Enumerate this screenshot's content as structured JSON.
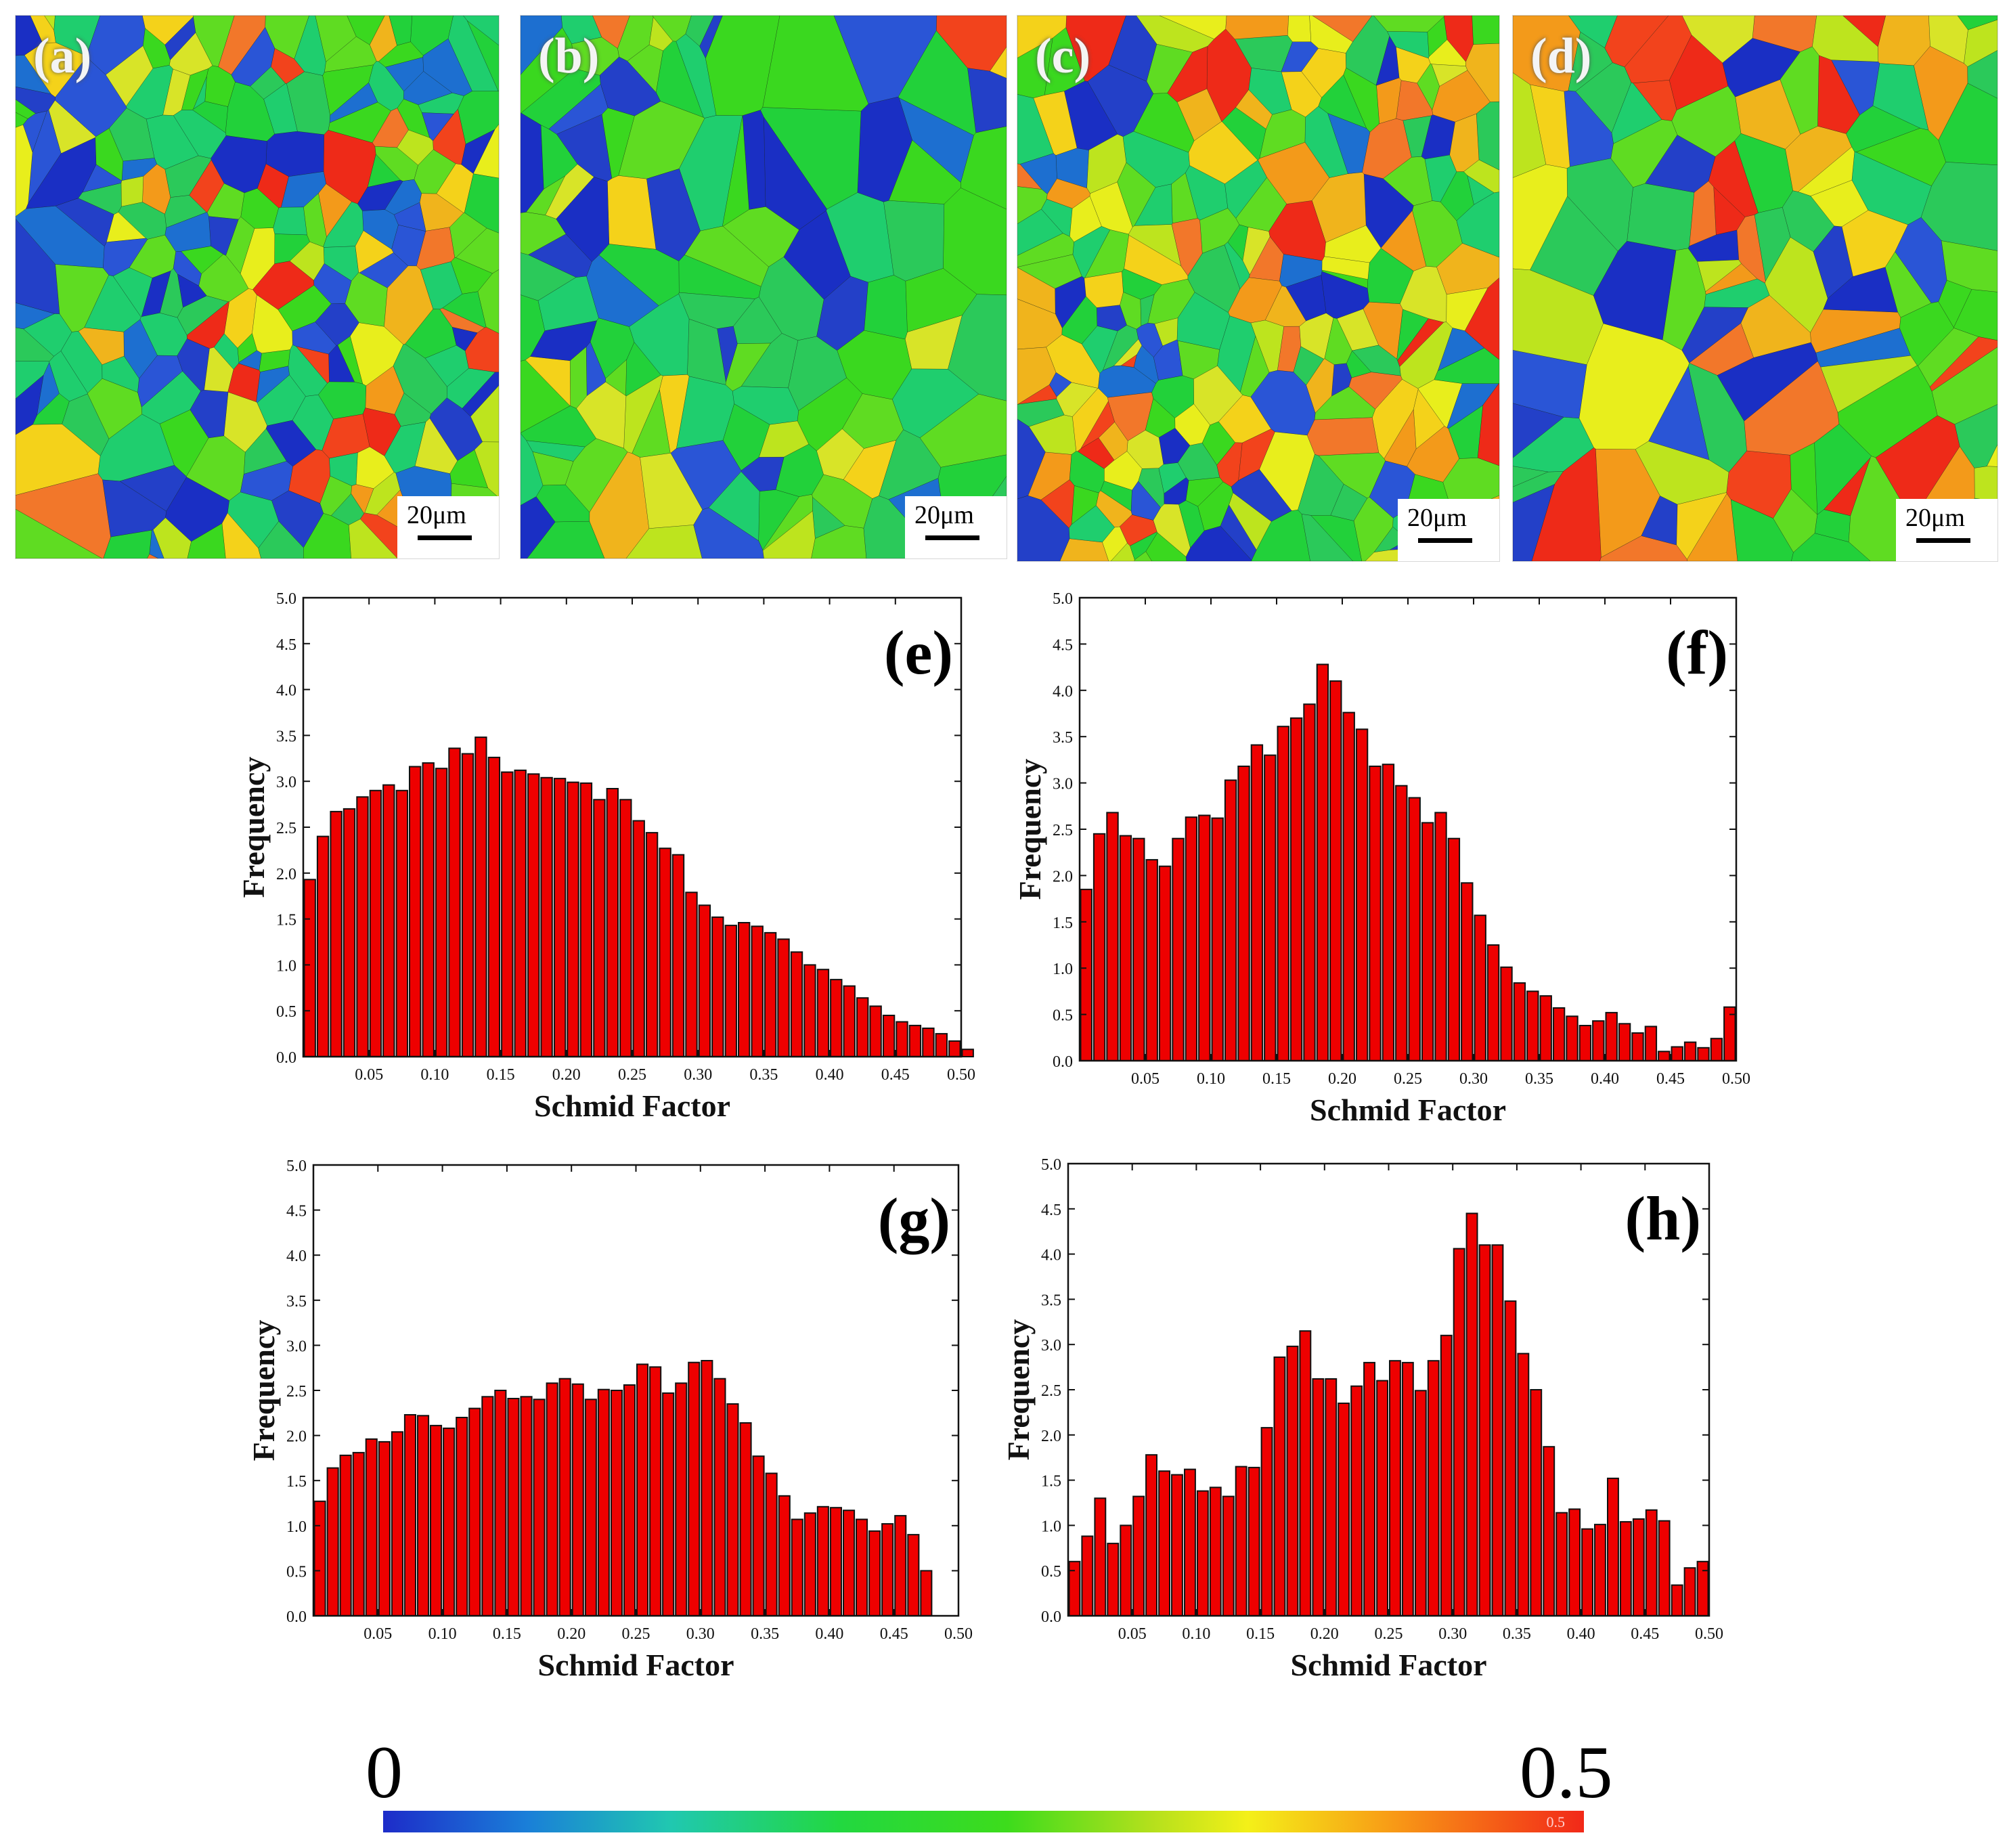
{
  "maps": [
    {
      "label": "(a)",
      "scale_label": "20μm"
    },
    {
      "label": "(b)",
      "scale_label": "20μm"
    },
    {
      "label": "(c)",
      "scale_label": "20μm"
    },
    {
      "label": "(d)",
      "scale_label": "20μm"
    }
  ],
  "colorbar": {
    "min_label": "0",
    "max_label": "0.5",
    "inner_label": "0.5",
    "colors": [
      "#1d2cc9",
      "#22d840",
      "#f4f018",
      "#f22818"
    ]
  },
  "chart_data": [
    {
      "type": "bar",
      "label": "(e)",
      "xlabel": "Schmid Factor",
      "ylabel": "Frequency",
      "xlim": [
        0,
        0.5
      ],
      "ylim": [
        0,
        5
      ],
      "xticks": [
        "0.05",
        "0.10",
        "0.15",
        "0.20",
        "0.25",
        "0.30",
        "0.35",
        "0.40",
        "0.45",
        "0.50"
      ],
      "yticks": [
        "0.0",
        "0.5",
        "1.0",
        "1.5",
        "2.0",
        "2.5",
        "3.0",
        "3.5",
        "4.0",
        "4.5",
        "5.0"
      ],
      "bar_color": "#ee0000",
      "x_start": 0.0,
      "bin_width": 0.01,
      "values": [
        1.93,
        2.4,
        2.67,
        2.7,
        2.83,
        2.9,
        2.96,
        2.9,
        3.16,
        3.2,
        3.14,
        3.36,
        3.3,
        3.48,
        3.26,
        3.1,
        3.12,
        3.08,
        3.04,
        3.03,
        2.99,
        2.98,
        2.8,
        2.92,
        2.8,
        2.57,
        2.44,
        2.27,
        2.2,
        1.79,
        1.65,
        1.52,
        1.43,
        1.46,
        1.42,
        1.35,
        1.28,
        1.14,
        1.0,
        0.95,
        0.84,
        0.77,
        0.64,
        0.55,
        0.45,
        0.38,
        0.34,
        0.31,
        0.25,
        0.17,
        0.08
      ]
    },
    {
      "type": "bar",
      "label": "(f)",
      "xlabel": "Schmid Factor",
      "ylabel": "Frequency",
      "xlim": [
        0,
        0.5
      ],
      "ylim": [
        0,
        5
      ],
      "xticks": [
        "0.05",
        "0.10",
        "0.15",
        "0.20",
        "0.25",
        "0.30",
        "0.35",
        "0.40",
        "0.45",
        "0.50"
      ],
      "yticks": [
        "0.0",
        "0.5",
        "1.0",
        "1.5",
        "2.0",
        "2.5",
        "3.0",
        "3.5",
        "4.0",
        "4.5",
        "5.0"
      ],
      "bar_color": "#ee0000",
      "x_start": 0.0,
      "bin_width": 0.01,
      "values": [
        1.85,
        2.45,
        2.68,
        2.43,
        2.4,
        2.17,
        2.1,
        2.4,
        2.63,
        2.65,
        2.62,
        3.03,
        3.18,
        3.41,
        3.3,
        3.61,
        3.7,
        3.85,
        4.28,
        4.1,
        3.76,
        3.58,
        3.18,
        3.2,
        2.97,
        2.84,
        2.57,
        2.68,
        2.4,
        1.92,
        1.57,
        1.25,
        1.01,
        0.84,
        0.75,
        0.7,
        0.57,
        0.48,
        0.38,
        0.43,
        0.52,
        0.4,
        0.3,
        0.37,
        0.1,
        0.15,
        0.2,
        0.14,
        0.24,
        0.58
      ]
    },
    {
      "type": "bar",
      "label": "(g)",
      "xlabel": "Schmid Factor",
      "ylabel": "Frequency",
      "xlim": [
        0,
        0.5
      ],
      "ylim": [
        0,
        5
      ],
      "xticks": [
        "0.05",
        "0.10",
        "0.15",
        "0.20",
        "0.25",
        "0.30",
        "0.35",
        "0.40",
        "0.45",
        "0.50"
      ],
      "yticks": [
        "0.0",
        "0.5",
        "1.0",
        "1.5",
        "2.0",
        "2.5",
        "3.0",
        "3.5",
        "4.0",
        "4.5",
        "5.0"
      ],
      "bar_color": "#ee0000",
      "x_start": 0.0,
      "bin_width": 0.01,
      "values": [
        1.27,
        1.64,
        1.78,
        1.81,
        1.96,
        1.93,
        2.04,
        2.23,
        2.22,
        2.11,
        2.08,
        2.2,
        2.3,
        2.43,
        2.5,
        2.41,
        2.43,
        2.4,
        2.58,
        2.63,
        2.57,
        2.4,
        2.51,
        2.5,
        2.56,
        2.79,
        2.76,
        2.47,
        2.58,
        2.81,
        2.83,
        2.63,
        2.35,
        2.14,
        1.77,
        1.58,
        1.33,
        1.07,
        1.14,
        1.21,
        1.2,
        1.17,
        1.07,
        0.94,
        1.02,
        1.11,
        0.9,
        0.5
      ]
    },
    {
      "type": "bar",
      "label": "(h)",
      "xlabel": "Schmid Factor",
      "ylabel": "Frequency",
      "xlim": [
        0,
        0.5
      ],
      "ylim": [
        0,
        5
      ],
      "xticks": [
        "0.05",
        "0.10",
        "0.15",
        "0.20",
        "0.25",
        "0.30",
        "0.35",
        "0.40",
        "0.45",
        "0.50"
      ],
      "yticks": [
        "0.0",
        "0.5",
        "1.0",
        "1.5",
        "2.0",
        "2.5",
        "3.0",
        "3.5",
        "4.0",
        "4.5",
        "5.0"
      ],
      "bar_color": "#ee0000",
      "x_start": 0.0,
      "bin_width": 0.01,
      "values": [
        0.6,
        0.88,
        1.3,
        0.8,
        1.0,
        1.32,
        1.78,
        1.6,
        1.56,
        1.62,
        1.38,
        1.42,
        1.32,
        1.65,
        1.64,
        2.08,
        2.86,
        2.98,
        3.15,
        2.62,
        2.62,
        2.35,
        2.54,
        2.8,
        2.6,
        2.82,
        2.8,
        2.49,
        2.82,
        3.1,
        4.06,
        4.45,
        4.1,
        4.1,
        3.48,
        2.9,
        2.5,
        1.87,
        1.14,
        1.18,
        0.96,
        1.01,
        1.52,
        1.04,
        1.07,
        1.17,
        1.05,
        0.34,
        0.53,
        0.6
      ]
    }
  ]
}
